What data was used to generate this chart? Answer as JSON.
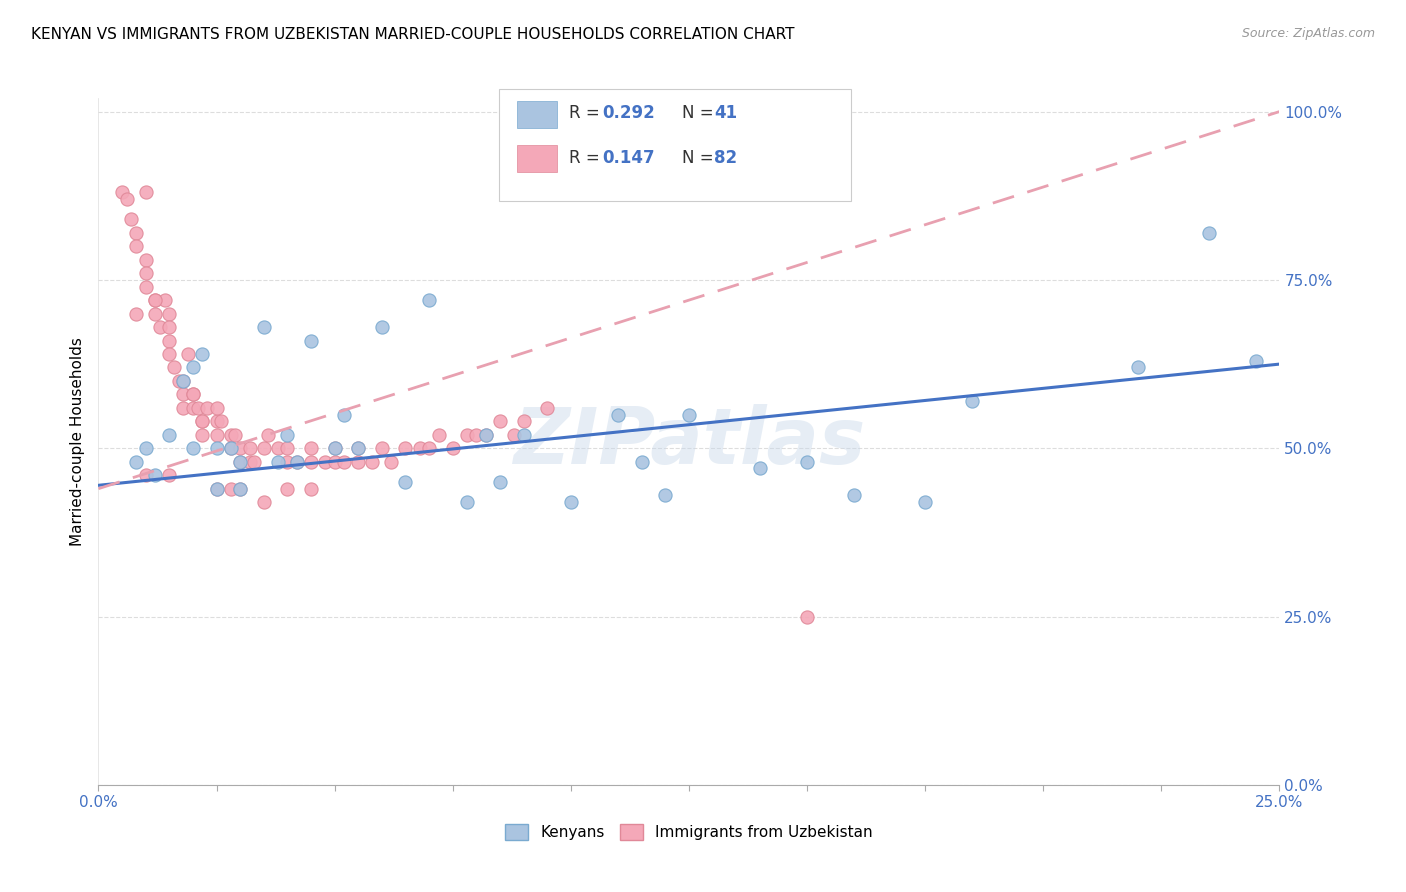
{
  "title": "KENYAN VS IMMIGRANTS FROM UZBEKISTAN MARRIED-COUPLE HOUSEHOLDS CORRELATION CHART",
  "source": "Source: ZipAtlas.com",
  "ylabel": "Married-couple Households",
  "color_kenyans": "#aac4e0",
  "color_uzbekistan": "#f4a8b8",
  "color_trend_kenyans": "#4472c4",
  "color_trend_uzbekistan": "#e8a0b0",
  "watermark": "ZIPatlas",
  "legend_label1": "Kenyans",
  "legend_label2": "Immigrants from Uzbekistan",
  "xmin": 0.0,
  "xmax": 0.25,
  "ymin": 0.0,
  "ymax": 1.0,
  "trend_ken_x0": 0.0,
  "trend_ken_y0": 0.445,
  "trend_ken_x1": 0.25,
  "trend_ken_y1": 0.625,
  "trend_uzb_x0": 0.0,
  "trend_uzb_y0": 0.44,
  "trend_uzb_x1": 0.25,
  "trend_uzb_y1": 1.0,
  "kenyans_x": [
    0.008,
    0.01,
    0.012,
    0.015,
    0.018,
    0.02,
    0.02,
    0.022,
    0.025,
    0.025,
    0.028,
    0.03,
    0.03,
    0.035,
    0.038,
    0.04,
    0.042,
    0.045,
    0.05,
    0.052,
    0.055,
    0.06,
    0.065,
    0.07,
    0.078,
    0.082,
    0.085,
    0.09,
    0.1,
    0.11,
    0.115,
    0.12,
    0.125,
    0.14,
    0.15,
    0.16,
    0.175,
    0.185,
    0.22,
    0.235,
    0.245
  ],
  "kenyans_y": [
    0.48,
    0.5,
    0.46,
    0.52,
    0.6,
    0.62,
    0.5,
    0.64,
    0.44,
    0.5,
    0.5,
    0.44,
    0.48,
    0.68,
    0.48,
    0.52,
    0.48,
    0.66,
    0.5,
    0.55,
    0.5,
    0.68,
    0.45,
    0.72,
    0.42,
    0.52,
    0.45,
    0.52,
    0.42,
    0.55,
    0.48,
    0.43,
    0.55,
    0.47,
    0.48,
    0.43,
    0.42,
    0.57,
    0.62,
    0.82,
    0.63
  ],
  "uzbekistan_x": [
    0.005,
    0.006,
    0.007,
    0.008,
    0.008,
    0.01,
    0.01,
    0.01,
    0.01,
    0.012,
    0.012,
    0.013,
    0.014,
    0.015,
    0.015,
    0.015,
    0.015,
    0.016,
    0.017,
    0.018,
    0.018,
    0.018,
    0.019,
    0.02,
    0.02,
    0.021,
    0.022,
    0.022,
    0.023,
    0.025,
    0.025,
    0.025,
    0.026,
    0.028,
    0.028,
    0.029,
    0.03,
    0.03,
    0.032,
    0.032,
    0.033,
    0.035,
    0.036,
    0.038,
    0.04,
    0.04,
    0.042,
    0.045,
    0.045,
    0.048,
    0.05,
    0.05,
    0.052,
    0.055,
    0.055,
    0.058,
    0.06,
    0.062,
    0.065,
    0.068,
    0.07,
    0.072,
    0.075,
    0.078,
    0.08,
    0.082,
    0.085,
    0.088,
    0.09,
    0.095,
    0.01,
    0.015,
    0.02,
    0.022,
    0.025,
    0.028,
    0.03,
    0.035,
    0.04,
    0.045,
    0.008,
    0.012,
    0.15
  ],
  "uzbekistan_y": [
    0.88,
    0.87,
    0.84,
    0.82,
    0.8,
    0.78,
    0.76,
    0.74,
    0.88,
    0.72,
    0.7,
    0.68,
    0.72,
    0.7,
    0.68,
    0.66,
    0.64,
    0.62,
    0.6,
    0.58,
    0.56,
    0.6,
    0.64,
    0.56,
    0.58,
    0.56,
    0.54,
    0.52,
    0.56,
    0.52,
    0.54,
    0.56,
    0.54,
    0.52,
    0.5,
    0.52,
    0.5,
    0.48,
    0.48,
    0.5,
    0.48,
    0.5,
    0.52,
    0.5,
    0.48,
    0.5,
    0.48,
    0.48,
    0.5,
    0.48,
    0.48,
    0.5,
    0.48,
    0.5,
    0.48,
    0.48,
    0.5,
    0.48,
    0.5,
    0.5,
    0.5,
    0.52,
    0.5,
    0.52,
    0.52,
    0.52,
    0.54,
    0.52,
    0.54,
    0.56,
    0.46,
    0.46,
    0.58,
    0.54,
    0.44,
    0.44,
    0.44,
    0.42,
    0.44,
    0.44,
    0.7,
    0.72,
    0.25
  ]
}
